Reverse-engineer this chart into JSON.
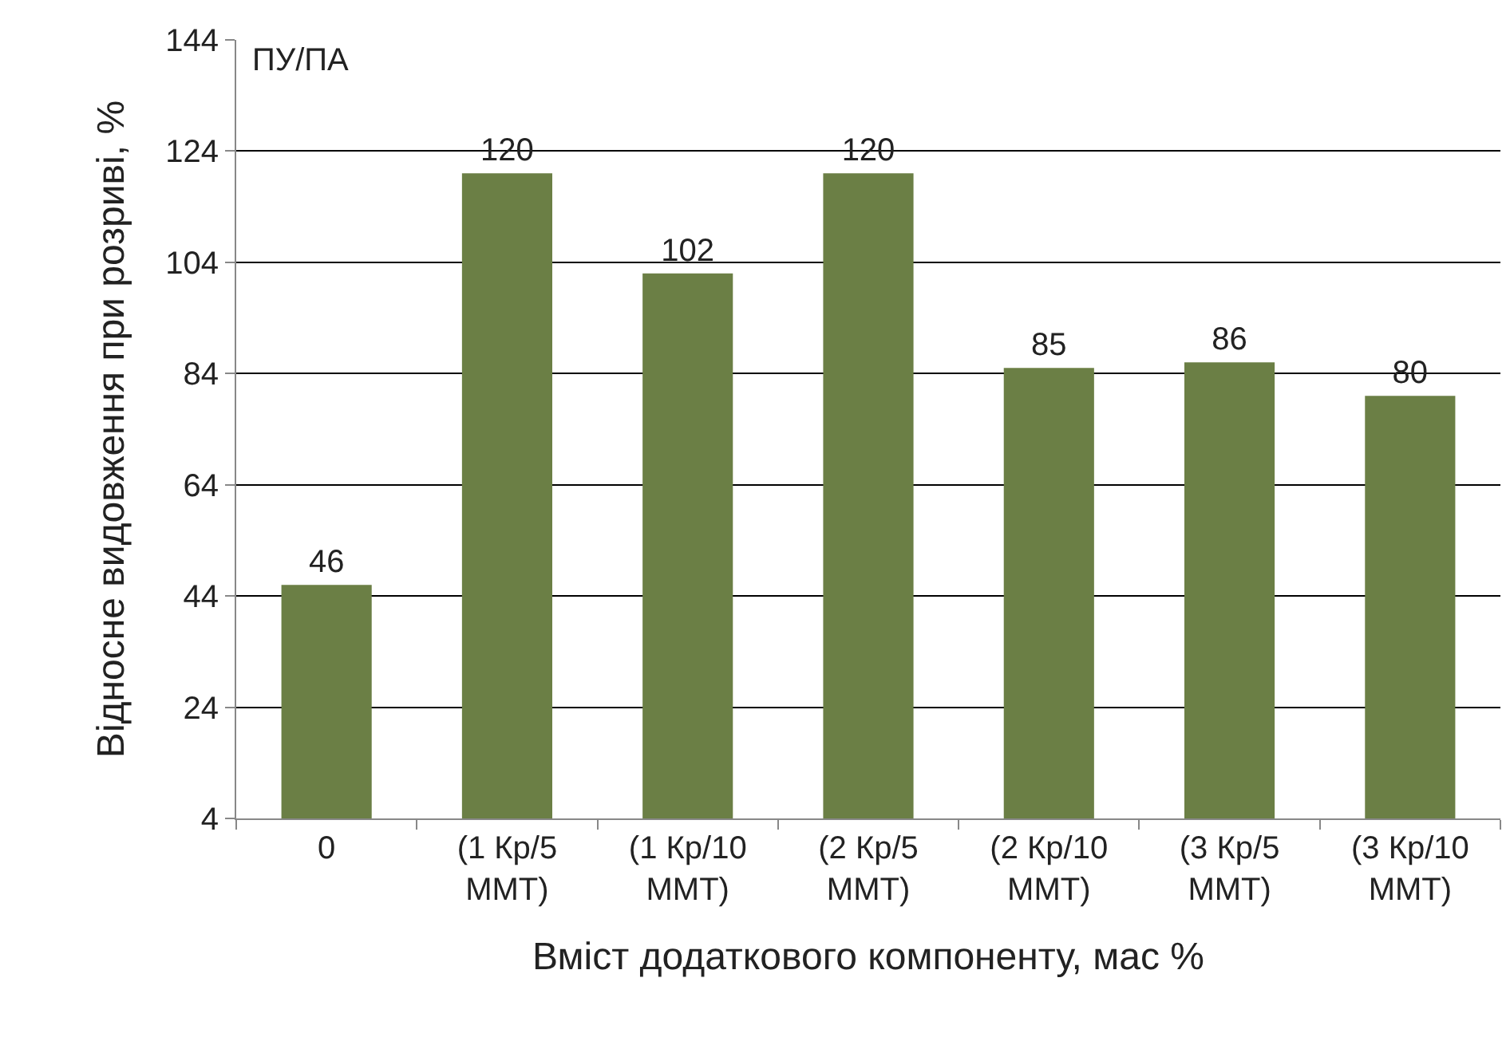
{
  "chart_data": {
    "type": "bar",
    "xlabel": "Вміст додаткового компоненту, мас %",
    "ylabel": "Відносне видовження при розриві, %",
    "annotations": [
      "ПУ/ПА"
    ],
    "categories": [
      "0",
      "(1 Кр/5 ММТ)",
      "(1 Кр/10 ММТ)",
      "(2 Кр/5 ММТ)",
      "(2 Кр/10 ММТ)",
      "(3 Кр/5 ММТ)",
      "(3 Кр/10 ММТ)"
    ],
    "values": [
      46,
      120,
      102,
      120,
      85,
      86,
      80
    ],
    "color": "#6b7f45",
    "ylim": [
      4,
      144
    ],
    "yticks": [
      4,
      24,
      44,
      64,
      84,
      104,
      124,
      144
    ],
    "grid": "y",
    "data_labels": true
  }
}
